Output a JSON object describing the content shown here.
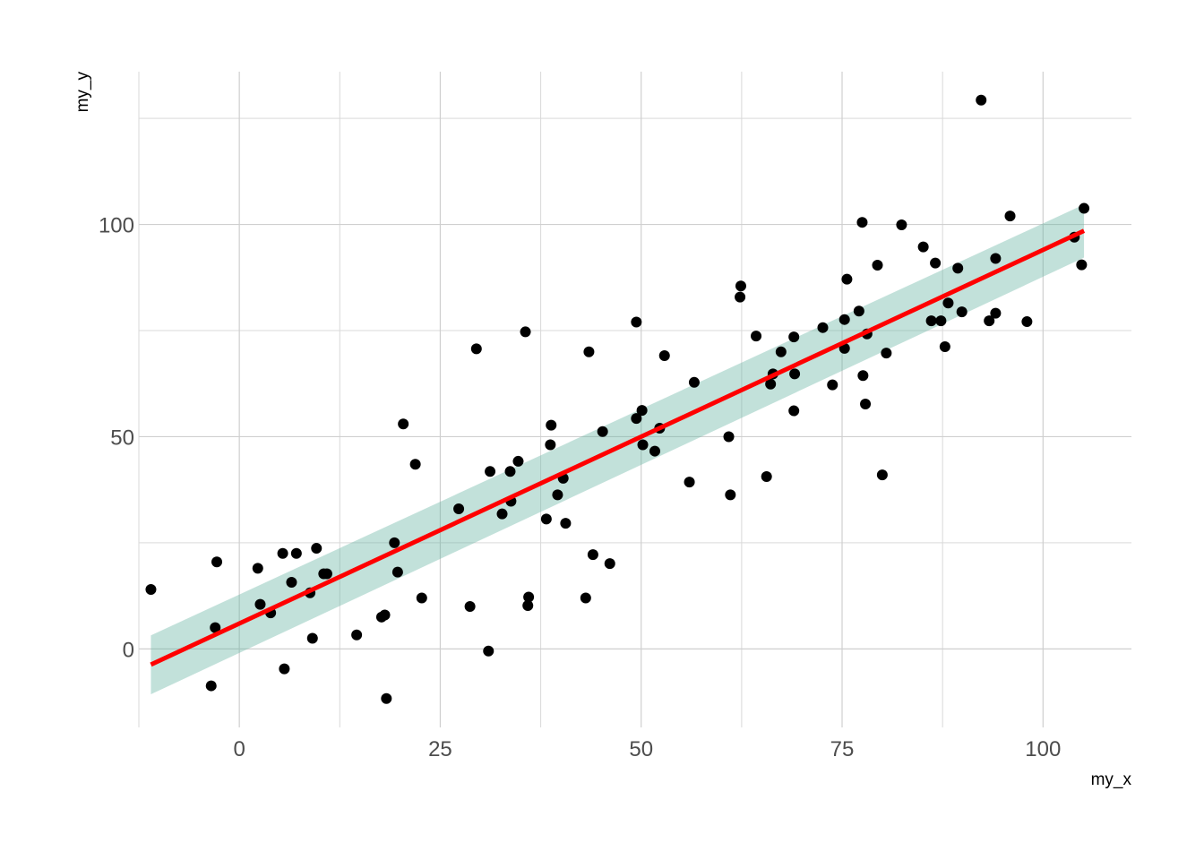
{
  "chart_data": {
    "type": "scatter",
    "title": "",
    "xlabel": "my_x",
    "ylabel": "my_y",
    "xlim": [
      -12.5,
      111
    ],
    "ylim": [
      -18.5,
      136
    ],
    "x_ticks": [
      0,
      25,
      50,
      75,
      100
    ],
    "y_ticks": [
      0,
      50,
      100
    ],
    "x_tick_labels": [
      "0",
      "25",
      "50",
      "75",
      "100"
    ],
    "y_tick_labels": [
      "0",
      "50",
      "100"
    ],
    "grid": true,
    "legend": "none",
    "colors": {
      "points": "#000000",
      "fit_line": "#ff0000",
      "ribbon": "#66b3a2",
      "grid": "#d9d9d9"
    },
    "points": [
      {
        "x": -11,
        "y": 14
      },
      {
        "x": -3.5,
        "y": -8.7
      },
      {
        "x": -3,
        "y": 5
      },
      {
        "x": -2.8,
        "y": 20.5
      },
      {
        "x": 2.3,
        "y": 19
      },
      {
        "x": 2.6,
        "y": 10.5
      },
      {
        "x": 3.9,
        "y": 8.5
      },
      {
        "x": 5.4,
        "y": 22.5
      },
      {
        "x": 5.6,
        "y": -4.7
      },
      {
        "x": 6.5,
        "y": 15.7
      },
      {
        "x": 7.1,
        "y": 22.5
      },
      {
        "x": 8.8,
        "y": 13.2
      },
      {
        "x": 9.1,
        "y": 2.5
      },
      {
        "x": 9.6,
        "y": 23.7
      },
      {
        "x": 10.5,
        "y": 17.7
      },
      {
        "x": 10.9,
        "y": 17.7
      },
      {
        "x": 14.6,
        "y": 3.3
      },
      {
        "x": 17.7,
        "y": 7.5
      },
      {
        "x": 18.1,
        "y": 8
      },
      {
        "x": 18.3,
        "y": -11.7
      },
      {
        "x": 19.3,
        "y": 25
      },
      {
        "x": 19.7,
        "y": 18.1
      },
      {
        "x": 20.4,
        "y": 53
      },
      {
        "x": 21.9,
        "y": 43.5
      },
      {
        "x": 22.7,
        "y": 12
      },
      {
        "x": 27.3,
        "y": 33
      },
      {
        "x": 28.7,
        "y": 10
      },
      {
        "x": 29.5,
        "y": 70.7
      },
      {
        "x": 31,
        "y": -0.5
      },
      {
        "x": 31.2,
        "y": 41.8
      },
      {
        "x": 32.7,
        "y": 31.8
      },
      {
        "x": 33.7,
        "y": 41.8
      },
      {
        "x": 33.8,
        "y": 34.8
      },
      {
        "x": 34.7,
        "y": 44.2
      },
      {
        "x": 35.6,
        "y": 74.7
      },
      {
        "x": 35.9,
        "y": 10.2
      },
      {
        "x": 36,
        "y": 12.2
      },
      {
        "x": 38.2,
        "y": 30.6
      },
      {
        "x": 38.7,
        "y": 48.1
      },
      {
        "x": 38.8,
        "y": 52.7
      },
      {
        "x": 39.6,
        "y": 36.3
      },
      {
        "x": 40.3,
        "y": 40.2
      },
      {
        "x": 40.6,
        "y": 29.6
      },
      {
        "x": 43.1,
        "y": 12
      },
      {
        "x": 43.5,
        "y": 70
      },
      {
        "x": 44,
        "y": 22.2
      },
      {
        "x": 45.2,
        "y": 51.2
      },
      {
        "x": 46.1,
        "y": 20.1
      },
      {
        "x": 49.4,
        "y": 54.3
      },
      {
        "x": 49.4,
        "y": 77
      },
      {
        "x": 50.1,
        "y": 56.2
      },
      {
        "x": 50.2,
        "y": 48.1
      },
      {
        "x": 51.7,
        "y": 46.6
      },
      {
        "x": 52.3,
        "y": 52
      },
      {
        "x": 52.9,
        "y": 69.1
      },
      {
        "x": 56,
        "y": 39.3
      },
      {
        "x": 56.6,
        "y": 62.8
      },
      {
        "x": 60.9,
        "y": 50
      },
      {
        "x": 61.1,
        "y": 36.3
      },
      {
        "x": 62.3,
        "y": 82.9
      },
      {
        "x": 62.4,
        "y": 85.5
      },
      {
        "x": 64.3,
        "y": 73.7
      },
      {
        "x": 65.6,
        "y": 40.6
      },
      {
        "x": 66.1,
        "y": 62.4
      },
      {
        "x": 66.4,
        "y": 64.8
      },
      {
        "x": 67.4,
        "y": 70
      },
      {
        "x": 69,
        "y": 73.5
      },
      {
        "x": 69,
        "y": 56.1
      },
      {
        "x": 69.1,
        "y": 64.8
      },
      {
        "x": 72.6,
        "y": 75.7
      },
      {
        "x": 73.8,
        "y": 62.2
      },
      {
        "x": 75.3,
        "y": 70.8
      },
      {
        "x": 75.3,
        "y": 77.6
      },
      {
        "x": 75.6,
        "y": 87.1
      },
      {
        "x": 77.1,
        "y": 79.6
      },
      {
        "x": 77.5,
        "y": 100.5
      },
      {
        "x": 77.6,
        "y": 64.4
      },
      {
        "x": 77.9,
        "y": 57.7
      },
      {
        "x": 78.1,
        "y": 74.2
      },
      {
        "x": 79.4,
        "y": 90.4
      },
      {
        "x": 80,
        "y": 41
      },
      {
        "x": 80.5,
        "y": 69.7
      },
      {
        "x": 82.4,
        "y": 99.9
      },
      {
        "x": 85.1,
        "y": 94.7
      },
      {
        "x": 86.1,
        "y": 77.3
      },
      {
        "x": 86.6,
        "y": 90.9
      },
      {
        "x": 87.3,
        "y": 77.3
      },
      {
        "x": 87.8,
        "y": 71.2
      },
      {
        "x": 88.2,
        "y": 81.5
      },
      {
        "x": 89.4,
        "y": 89.7
      },
      {
        "x": 89.9,
        "y": 79.4
      },
      {
        "x": 92.3,
        "y": 129.3
      },
      {
        "x": 93.3,
        "y": 77.3
      },
      {
        "x": 94.1,
        "y": 92
      },
      {
        "x": 94.1,
        "y": 79.1
      },
      {
        "x": 95.9,
        "y": 102
      },
      {
        "x": 98,
        "y": 77.1
      },
      {
        "x": 103.9,
        "y": 97
      },
      {
        "x": 104.8,
        "y": 90.5
      },
      {
        "x": 105.1,
        "y": 103.8
      }
    ],
    "fit_line": {
      "x": [
        -11,
        105.1
      ],
      "y": [
        -3.7,
        98.5
      ]
    },
    "confidence_band": {
      "x": [
        -11,
        105.1
      ],
      "lower": [
        -10.7,
        92.2
      ],
      "upper": [
        3.2,
        104.7
      ]
    }
  }
}
